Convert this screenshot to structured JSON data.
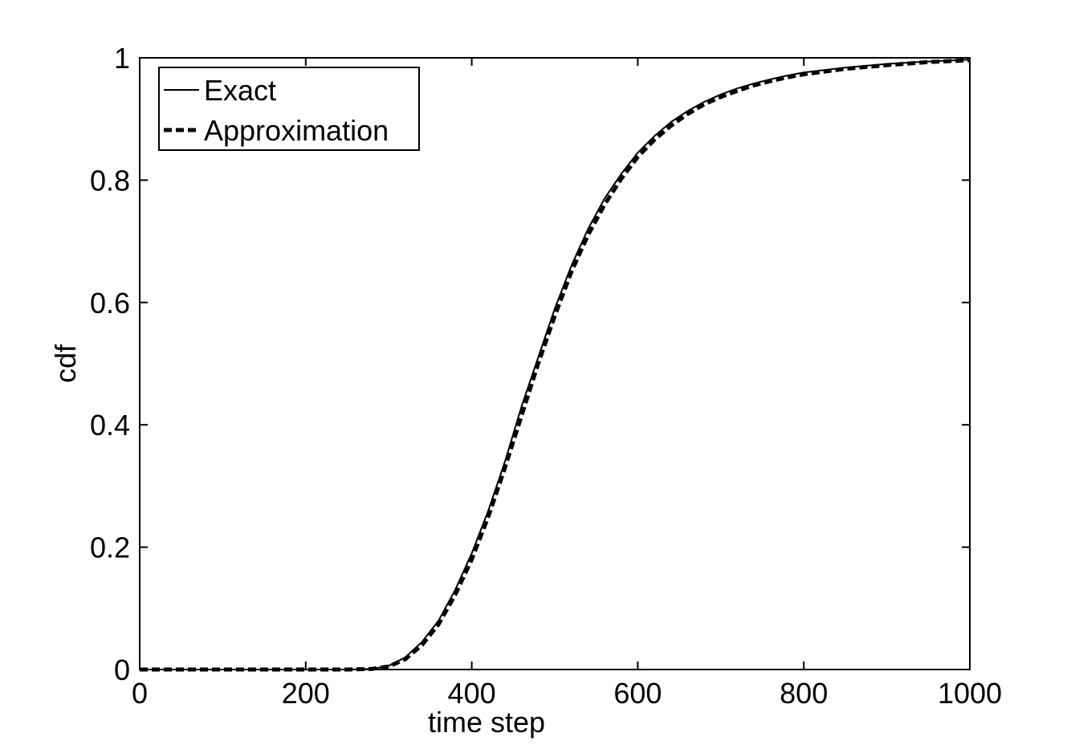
{
  "chart_data": {
    "type": "line",
    "title": "",
    "xlabel": "time step",
    "ylabel": "cdf",
    "xlim": [
      0,
      1000
    ],
    "ylim": [
      0,
      1
    ],
    "x_ticks": [
      0,
      200,
      400,
      600,
      800,
      1000
    ],
    "y_ticks": [
      0,
      0.2,
      0.4,
      0.6,
      0.8,
      1
    ],
    "x_tick_labels": [
      "0",
      "200",
      "400",
      "600",
      "800",
      "1000"
    ],
    "y_tick_labels": [
      "0",
      "0.2",
      "0.4",
      "0.6",
      "0.8",
      "1"
    ],
    "grid": false,
    "legend_position": "top-left",
    "series": [
      {
        "name": "Exact",
        "style": "solid",
        "color": "#000000",
        "points": [
          [
            0,
            0
          ],
          [
            100,
            0
          ],
          [
            200,
            0
          ],
          [
            250,
            0
          ],
          [
            280,
            0.001
          ],
          [
            300,
            0.006
          ],
          [
            320,
            0.02
          ],
          [
            340,
            0.045
          ],
          [
            360,
            0.08
          ],
          [
            380,
            0.13
          ],
          [
            400,
            0.19
          ],
          [
            420,
            0.26
          ],
          [
            440,
            0.34
          ],
          [
            460,
            0.43
          ],
          [
            480,
            0.51
          ],
          [
            500,
            0.59
          ],
          [
            520,
            0.66
          ],
          [
            540,
            0.72
          ],
          [
            560,
            0.77
          ],
          [
            580,
            0.81
          ],
          [
            600,
            0.845
          ],
          [
            620,
            0.872
          ],
          [
            640,
            0.895
          ],
          [
            660,
            0.913
          ],
          [
            680,
            0.928
          ],
          [
            700,
            0.94
          ],
          [
            720,
            0.95
          ],
          [
            740,
            0.958
          ],
          [
            760,
            0.965
          ],
          [
            780,
            0.971
          ],
          [
            800,
            0.976
          ],
          [
            850,
            0.984
          ],
          [
            900,
            0.99
          ],
          [
            950,
            0.994
          ],
          [
            1000,
            0.997
          ]
        ]
      },
      {
        "name": "Approximation",
        "style": "dashed",
        "color": "#000000",
        "points": [
          [
            0,
            0
          ],
          [
            100,
            0
          ],
          [
            200,
            0
          ],
          [
            250,
            0
          ],
          [
            280,
            0.001
          ],
          [
            300,
            0.005
          ],
          [
            320,
            0.017
          ],
          [
            340,
            0.04
          ],
          [
            360,
            0.074
          ],
          [
            380,
            0.122
          ],
          [
            400,
            0.18
          ],
          [
            420,
            0.25
          ],
          [
            440,
            0.33
          ],
          [
            460,
            0.415
          ],
          [
            480,
            0.5
          ],
          [
            500,
            0.578
          ],
          [
            520,
            0.65
          ],
          [
            540,
            0.71
          ],
          [
            560,
            0.76
          ],
          [
            580,
            0.802
          ],
          [
            600,
            0.838
          ],
          [
            620,
            0.866
          ],
          [
            640,
            0.889
          ],
          [
            660,
            0.908
          ],
          [
            680,
            0.924
          ],
          [
            700,
            0.936
          ],
          [
            720,
            0.946
          ],
          [
            740,
            0.955
          ],
          [
            760,
            0.962
          ],
          [
            780,
            0.968
          ],
          [
            800,
            0.973
          ],
          [
            850,
            0.982
          ],
          [
            900,
            0.988
          ],
          [
            950,
            0.993
          ],
          [
            1000,
            0.996
          ]
        ]
      }
    ]
  }
}
